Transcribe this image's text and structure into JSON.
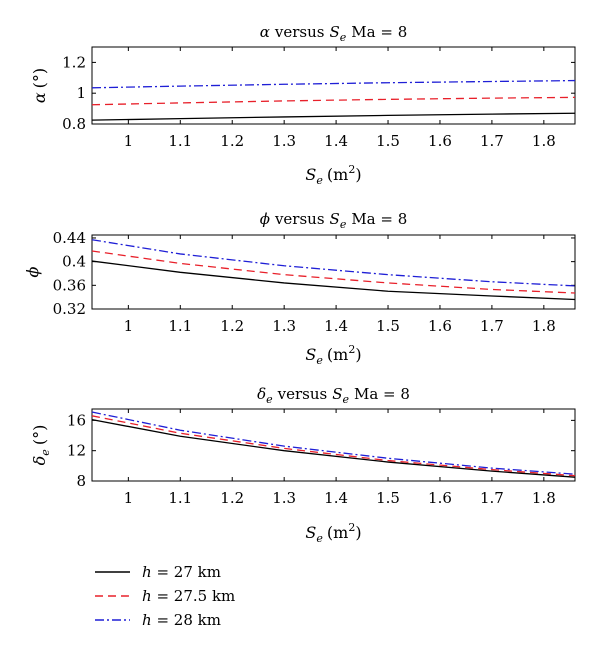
{
  "chart_data": [
    {
      "type": "line",
      "title": "α versus S_e Ma = 8",
      "title_parts": {
        "var": "α",
        "word": "versus",
        "sym": "S",
        "sub": "e",
        "cond": "Ma = 8"
      },
      "xlabel": "S_e (m²)",
      "xlabel_parts": {
        "sym": "S",
        "sub": "e",
        "unit": "(m",
        "sup": "2",
        "close": ")"
      },
      "ylabel": "α (°)",
      "ylabel_parts": {
        "sym": "α",
        "sub": "",
        "unit": "(°)"
      },
      "xlim": [
        0.93,
        1.86
      ],
      "ylim": [
        0.8,
        1.3
      ],
      "xticks": [
        1,
        1.1,
        1.2,
        1.3,
        1.4,
        1.5,
        1.6,
        1.7,
        1.8
      ],
      "xtick_labels": [
        "1",
        "1.1",
        "1.2",
        "1.3",
        "1.4",
        "1.5",
        "1.6",
        "1.7",
        "1.8"
      ],
      "yticks": [
        0.8,
        1,
        1.2
      ],
      "ytick_labels": [
        "0.8",
        "1",
        "1.2"
      ],
      "series": [
        {
          "key": "h27",
          "color": "#000000",
          "dash": "",
          "x": [
            0.93,
            1.1,
            1.3,
            1.5,
            1.7,
            1.86
          ],
          "y": [
            0.825,
            0.835,
            0.846,
            0.856,
            0.864,
            0.87
          ]
        },
        {
          "key": "h275",
          "color": "#e8202a",
          "dash": "8 5",
          "x": [
            0.93,
            1.1,
            1.3,
            1.5,
            1.7,
            1.86
          ],
          "y": [
            0.925,
            0.937,
            0.95,
            0.96,
            0.968,
            0.973
          ]
        },
        {
          "key": "h28",
          "color": "#1f1fd6",
          "dash": "9 3 2 3",
          "x": [
            0.93,
            1.1,
            1.3,
            1.5,
            1.7,
            1.86
          ],
          "y": [
            1.035,
            1.046,
            1.058,
            1.068,
            1.076,
            1.082
          ]
        }
      ]
    },
    {
      "type": "line",
      "title": "ϕ versus S_e Ma = 8",
      "title_parts": {
        "var": "ϕ",
        "word": "versus",
        "sym": "S",
        "sub": "e",
        "cond": "Ma = 8"
      },
      "xlabel": "S_e (m²)",
      "xlabel_parts": {
        "sym": "S",
        "sub": "e",
        "unit": "(m",
        "sup": "2",
        "close": ")"
      },
      "ylabel": "ϕ",
      "ylabel_parts": {
        "sym": "ϕ",
        "sub": "",
        "unit": ""
      },
      "xlim": [
        0.93,
        1.86
      ],
      "ylim": [
        0.32,
        0.445
      ],
      "xticks": [
        1,
        1.1,
        1.2,
        1.3,
        1.4,
        1.5,
        1.6,
        1.7,
        1.8
      ],
      "xtick_labels": [
        "1",
        "1.1",
        "1.2",
        "1.3",
        "1.4",
        "1.5",
        "1.6",
        "1.7",
        "1.8"
      ],
      "yticks": [
        0.32,
        0.36,
        0.4,
        0.44
      ],
      "ytick_labels": [
        "0.32",
        "0.36",
        "0.4",
        "0.44"
      ],
      "series": [
        {
          "key": "h27",
          "color": "#000000",
          "dash": "",
          "x": [
            0.93,
            1.1,
            1.3,
            1.5,
            1.7,
            1.86
          ],
          "y": [
            0.401,
            0.382,
            0.364,
            0.35,
            0.342,
            0.336
          ]
        },
        {
          "key": "h275",
          "color": "#e8202a",
          "dash": "8 5",
          "x": [
            0.93,
            1.1,
            1.3,
            1.5,
            1.7,
            1.86
          ],
          "y": [
            0.418,
            0.397,
            0.378,
            0.364,
            0.353,
            0.347
          ]
        },
        {
          "key": "h28",
          "color": "#1f1fd6",
          "dash": "9 3 2 3",
          "x": [
            0.93,
            1.1,
            1.3,
            1.5,
            1.7,
            1.86
          ],
          "y": [
            0.437,
            0.413,
            0.393,
            0.378,
            0.366,
            0.359
          ]
        }
      ]
    },
    {
      "type": "line",
      "title": "δ_e versus S_e Ma = 8",
      "title_parts": {
        "var": "δ",
        "var_sub": "e",
        "word": "versus",
        "sym": "S",
        "sub": "e",
        "cond": "Ma = 8"
      },
      "xlabel": "S_e (m²)",
      "xlabel_parts": {
        "sym": "S",
        "sub": "e",
        "unit": "(m",
        "sup": "2",
        "close": ")"
      },
      "ylabel": "δ_e (°)",
      "ylabel_parts": {
        "sym": "δ",
        "sub": "e",
        "unit": "(°)"
      },
      "xlim": [
        0.93,
        1.86
      ],
      "ylim": [
        8,
        17.5
      ],
      "xticks": [
        1,
        1.1,
        1.2,
        1.3,
        1.4,
        1.5,
        1.6,
        1.7,
        1.8
      ],
      "xtick_labels": [
        "1",
        "1.1",
        "1.2",
        "1.3",
        "1.4",
        "1.5",
        "1.6",
        "1.7",
        "1.8"
      ],
      "yticks": [
        8,
        12,
        16
      ],
      "ytick_labels": [
        "8",
        "12",
        "16"
      ],
      "series": [
        {
          "key": "h27",
          "color": "#000000",
          "dash": "",
          "x": [
            0.93,
            1.1,
            1.3,
            1.5,
            1.7,
            1.86
          ],
          "y": [
            16.1,
            13.9,
            12.0,
            10.5,
            9.3,
            8.5
          ]
        },
        {
          "key": "h275",
          "color": "#e8202a",
          "dash": "8 5",
          "x": [
            0.93,
            1.1,
            1.3,
            1.5,
            1.7,
            1.86
          ],
          "y": [
            16.6,
            14.3,
            12.3,
            10.7,
            9.5,
            8.7
          ]
        },
        {
          "key": "h28",
          "color": "#1f1fd6",
          "dash": "9 3 2 3",
          "x": [
            0.93,
            1.1,
            1.3,
            1.5,
            1.7,
            1.86
          ],
          "y": [
            17.1,
            14.7,
            12.6,
            11.0,
            9.7,
            8.9
          ]
        }
      ]
    }
  ],
  "legend": {
    "placement": "bottom-left",
    "entries": [
      {
        "key": "h27",
        "var": "h",
        "text": " = 27 km",
        "color": "#000000",
        "dash": ""
      },
      {
        "key": "h275",
        "var": "h",
        "text": " = 27.5 km",
        "color": "#e8202a",
        "dash": "8 5"
      },
      {
        "key": "h28",
        "var": "h",
        "text": " = 28 km",
        "color": "#1f1fd6",
        "dash": "9 3 2 3"
      }
    ]
  }
}
